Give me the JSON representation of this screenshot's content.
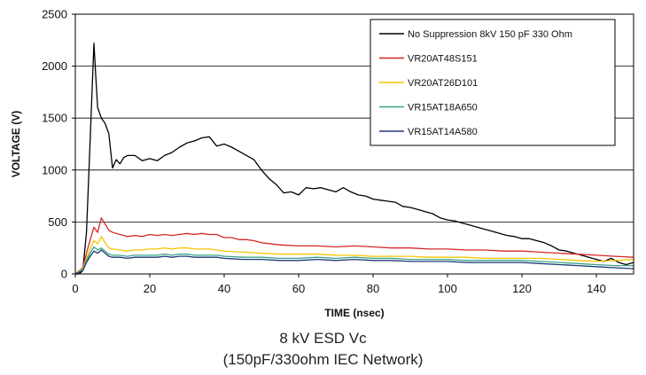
{
  "caption": {
    "line1": "8 kV ESD Vc",
    "line2": "(150pF/330ohm IEC Network)"
  },
  "chart_data": {
    "type": "line",
    "title": "8 kV ESD Vc",
    "subtitle": "(150pF/330ohm IEC Network)",
    "xlabel": "TIME (nsec)",
    "ylabel": "VOLTAGE (V)",
    "xlim": [
      0,
      150
    ],
    "ylim": [
      0,
      2500
    ],
    "xticks": [
      0,
      20,
      40,
      60,
      80,
      100,
      120,
      140
    ],
    "yticks": [
      0,
      500,
      1000,
      1500,
      2000,
      2500
    ],
    "grid": "horizontal",
    "legend_position": "top-right",
    "series": [
      {
        "name": "No Suppression 8kV 150 pF 330 Ohm",
        "color": "#000000",
        "points": [
          [
            0,
            0
          ],
          [
            1,
            0
          ],
          [
            2,
            30
          ],
          [
            3,
            400
          ],
          [
            4,
            1300
          ],
          [
            5,
            2220
          ],
          [
            5.5,
            1900
          ],
          [
            6,
            1600
          ],
          [
            7,
            1500
          ],
          [
            8,
            1450
          ],
          [
            9,
            1350
          ],
          [
            10,
            1020
          ],
          [
            11,
            1100
          ],
          [
            12,
            1060
          ],
          [
            13,
            1120
          ],
          [
            14,
            1140
          ],
          [
            16,
            1140
          ],
          [
            18,
            1090
          ],
          [
            20,
            1110
          ],
          [
            22,
            1090
          ],
          [
            24,
            1140
          ],
          [
            26,
            1170
          ],
          [
            28,
            1220
          ],
          [
            30,
            1260
          ],
          [
            32,
            1280
          ],
          [
            34,
            1310
          ],
          [
            36,
            1320
          ],
          [
            38,
            1230
          ],
          [
            40,
            1250
          ],
          [
            42,
            1220
          ],
          [
            44,
            1180
          ],
          [
            46,
            1140
          ],
          [
            48,
            1100
          ],
          [
            50,
            1000
          ],
          [
            52,
            920
          ],
          [
            54,
            860
          ],
          [
            56,
            780
          ],
          [
            58,
            790
          ],
          [
            60,
            760
          ],
          [
            62,
            830
          ],
          [
            64,
            820
          ],
          [
            66,
            830
          ],
          [
            68,
            810
          ],
          [
            70,
            790
          ],
          [
            72,
            830
          ],
          [
            74,
            790
          ],
          [
            76,
            760
          ],
          [
            78,
            750
          ],
          [
            80,
            720
          ],
          [
            82,
            710
          ],
          [
            84,
            700
          ],
          [
            86,
            690
          ],
          [
            88,
            650
          ],
          [
            90,
            640
          ],
          [
            92,
            620
          ],
          [
            94,
            600
          ],
          [
            96,
            580
          ],
          [
            98,
            540
          ],
          [
            100,
            520
          ],
          [
            102,
            510
          ],
          [
            104,
            490
          ],
          [
            106,
            470
          ],
          [
            108,
            450
          ],
          [
            110,
            430
          ],
          [
            112,
            410
          ],
          [
            114,
            390
          ],
          [
            116,
            370
          ],
          [
            118,
            360
          ],
          [
            120,
            340
          ],
          [
            122,
            340
          ],
          [
            124,
            320
          ],
          [
            126,
            300
          ],
          [
            128,
            270
          ],
          [
            130,
            230
          ],
          [
            132,
            220
          ],
          [
            134,
            200
          ],
          [
            136,
            180
          ],
          [
            138,
            160
          ],
          [
            140,
            140
          ],
          [
            142,
            120
          ],
          [
            144,
            150
          ],
          [
            146,
            110
          ],
          [
            148,
            90
          ],
          [
            150,
            110
          ]
        ]
      },
      {
        "name": "VR20AT48S151",
        "color": "#d62828",
        "points": [
          [
            0,
            0
          ],
          [
            2,
            60
          ],
          [
            3,
            200
          ],
          [
            4,
            330
          ],
          [
            5,
            450
          ],
          [
            6,
            400
          ],
          [
            7,
            540
          ],
          [
            8,
            480
          ],
          [
            9,
            420
          ],
          [
            10,
            400
          ],
          [
            12,
            380
          ],
          [
            14,
            360
          ],
          [
            16,
            370
          ],
          [
            18,
            360
          ],
          [
            20,
            380
          ],
          [
            22,
            370
          ],
          [
            24,
            380
          ],
          [
            26,
            370
          ],
          [
            28,
            380
          ],
          [
            30,
            390
          ],
          [
            32,
            380
          ],
          [
            34,
            390
          ],
          [
            36,
            380
          ],
          [
            38,
            380
          ],
          [
            40,
            350
          ],
          [
            42,
            350
          ],
          [
            44,
            330
          ],
          [
            46,
            330
          ],
          [
            48,
            320
          ],
          [
            50,
            300
          ],
          [
            55,
            280
          ],
          [
            60,
            270
          ],
          [
            65,
            270
          ],
          [
            70,
            260
          ],
          [
            75,
            270
          ],
          [
            80,
            260
          ],
          [
            85,
            250
          ],
          [
            90,
            250
          ],
          [
            95,
            240
          ],
          [
            100,
            240
          ],
          [
            105,
            230
          ],
          [
            110,
            230
          ],
          [
            115,
            220
          ],
          [
            120,
            220
          ],
          [
            125,
            210
          ],
          [
            130,
            200
          ],
          [
            135,
            190
          ],
          [
            140,
            180
          ],
          [
            145,
            170
          ],
          [
            150,
            160
          ]
        ]
      },
      {
        "name": "VR20AT26D101",
        "color": "#f5c400",
        "points": [
          [
            0,
            0
          ],
          [
            2,
            50
          ],
          [
            3,
            150
          ],
          [
            4,
            240
          ],
          [
            5,
            320
          ],
          [
            6,
            290
          ],
          [
            7,
            360
          ],
          [
            8,
            300
          ],
          [
            9,
            250
          ],
          [
            10,
            240
          ],
          [
            12,
            230
          ],
          [
            14,
            220
          ],
          [
            16,
            230
          ],
          [
            18,
            230
          ],
          [
            20,
            240
          ],
          [
            22,
            240
          ],
          [
            24,
            250
          ],
          [
            26,
            240
          ],
          [
            28,
            250
          ],
          [
            30,
            250
          ],
          [
            32,
            240
          ],
          [
            34,
            240
          ],
          [
            36,
            240
          ],
          [
            38,
            230
          ],
          [
            40,
            220
          ],
          [
            45,
            210
          ],
          [
            50,
            200
          ],
          [
            55,
            190
          ],
          [
            60,
            190
          ],
          [
            65,
            190
          ],
          [
            70,
            180
          ],
          [
            75,
            180
          ],
          [
            80,
            170
          ],
          [
            85,
            170
          ],
          [
            90,
            170
          ],
          [
            95,
            160
          ],
          [
            100,
            160
          ],
          [
            105,
            160
          ],
          [
            110,
            150
          ],
          [
            115,
            150
          ],
          [
            120,
            150
          ],
          [
            125,
            150
          ],
          [
            130,
            140
          ],
          [
            135,
            130
          ],
          [
            140,
            120
          ],
          [
            145,
            130
          ],
          [
            150,
            140
          ]
        ]
      },
      {
        "name": "VR15AT18A650",
        "color": "#3aa58a",
        "points": [
          [
            0,
            0
          ],
          [
            2,
            40
          ],
          [
            3,
            130
          ],
          [
            4,
            200
          ],
          [
            5,
            260
          ],
          [
            6,
            230
          ],
          [
            7,
            250
          ],
          [
            8,
            220
          ],
          [
            9,
            190
          ],
          [
            10,
            180
          ],
          [
            12,
            180
          ],
          [
            14,
            170
          ],
          [
            16,
            180
          ],
          [
            18,
            180
          ],
          [
            20,
            180
          ],
          [
            22,
            180
          ],
          [
            24,
            190
          ],
          [
            26,
            180
          ],
          [
            28,
            190
          ],
          [
            30,
            190
          ],
          [
            32,
            180
          ],
          [
            34,
            180
          ],
          [
            36,
            180
          ],
          [
            38,
            180
          ],
          [
            40,
            170
          ],
          [
            45,
            160
          ],
          [
            50,
            160
          ],
          [
            55,
            150
          ],
          [
            60,
            150
          ],
          [
            65,
            160
          ],
          [
            70,
            150
          ],
          [
            75,
            160
          ],
          [
            80,
            150
          ],
          [
            85,
            150
          ],
          [
            90,
            140
          ],
          [
            95,
            140
          ],
          [
            100,
            140
          ],
          [
            105,
            130
          ],
          [
            110,
            130
          ],
          [
            115,
            130
          ],
          [
            120,
            130
          ],
          [
            125,
            120
          ],
          [
            130,
            110
          ],
          [
            135,
            100
          ],
          [
            140,
            90
          ],
          [
            145,
            80
          ],
          [
            150,
            80
          ]
        ]
      },
      {
        "name": "VR15AT14A580",
        "color": "#1e3a78",
        "points": [
          [
            0,
            0
          ],
          [
            2,
            30
          ],
          [
            3,
            110
          ],
          [
            4,
            170
          ],
          [
            5,
            220
          ],
          [
            6,
            200
          ],
          [
            7,
            230
          ],
          [
            8,
            200
          ],
          [
            9,
            170
          ],
          [
            10,
            160
          ],
          [
            12,
            160
          ],
          [
            14,
            150
          ],
          [
            16,
            160
          ],
          [
            18,
            160
          ],
          [
            20,
            160
          ],
          [
            22,
            160
          ],
          [
            24,
            170
          ],
          [
            26,
            160
          ],
          [
            28,
            170
          ],
          [
            30,
            170
          ],
          [
            32,
            160
          ],
          [
            34,
            160
          ],
          [
            36,
            160
          ],
          [
            38,
            160
          ],
          [
            40,
            150
          ],
          [
            45,
            140
          ],
          [
            50,
            140
          ],
          [
            55,
            130
          ],
          [
            60,
            130
          ],
          [
            65,
            140
          ],
          [
            70,
            130
          ],
          [
            75,
            140
          ],
          [
            80,
            130
          ],
          [
            85,
            130
          ],
          [
            90,
            120
          ],
          [
            95,
            120
          ],
          [
            100,
            120
          ],
          [
            105,
            110
          ],
          [
            110,
            110
          ],
          [
            115,
            110
          ],
          [
            120,
            110
          ],
          [
            125,
            100
          ],
          [
            130,
            90
          ],
          [
            135,
            80
          ],
          [
            140,
            70
          ],
          [
            145,
            60
          ],
          [
            150,
            50
          ]
        ]
      }
    ]
  }
}
